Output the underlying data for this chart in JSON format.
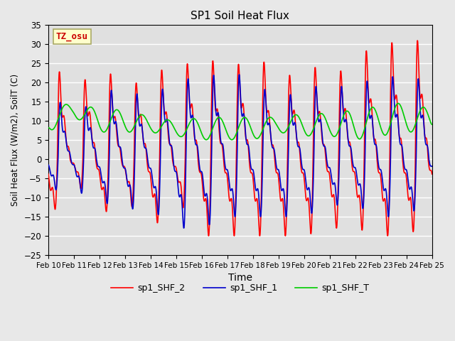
{
  "title": "SP1 Soil Heat Flux",
  "xlabel": "Time",
  "ylabel": "Soil Heat Flux (W/m2), SoilT (C)",
  "ylim": [
    -25,
    35
  ],
  "yticks": [
    -25,
    -20,
    -15,
    -10,
    -5,
    0,
    5,
    10,
    15,
    20,
    25,
    30,
    35
  ],
  "xtick_labels": [
    "Feb 10",
    "Feb 11",
    "Feb 12",
    "Feb 13",
    "Feb 14",
    "Feb 15",
    "Feb 16",
    "Feb 17",
    "Feb 18",
    "Feb 19",
    "Feb 20",
    "Feb 21",
    "Feb 22",
    "Feb 23",
    "Feb 24",
    "Feb 25"
  ],
  "color_red": "#ff0000",
  "color_blue": "#0000cc",
  "color_green": "#00cc00",
  "legend_labels": [
    "sp1_SHF_2",
    "sp1_SHF_1",
    "sp1_SHF_T"
  ],
  "annotation_text": "TZ_osu",
  "annotation_color": "#cc0000",
  "annotation_bg": "#ffffcc",
  "annotation_edge": "#aaaa66",
  "fig_bg": "#e8e8e8",
  "plot_bg": "#e0e0e0",
  "grid_color": "#ffffff",
  "linewidth": 1.2,
  "n_days": 15,
  "pts_per_day": 144
}
